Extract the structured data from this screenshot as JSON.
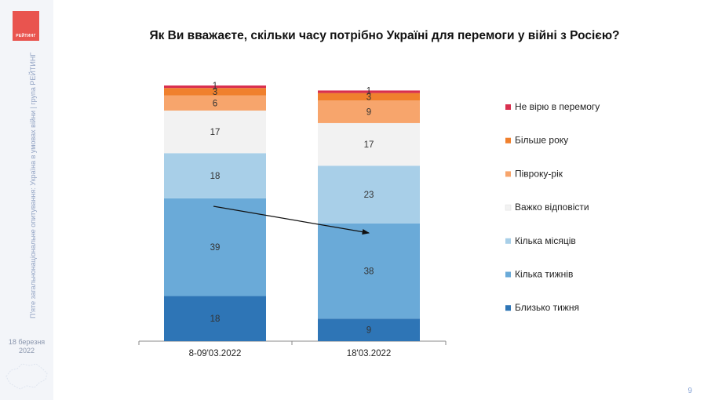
{
  "brand": {
    "logo_text": "РЕЙТИНГ"
  },
  "sidebar": {
    "vertical_text": "П'яте загальнонаціональне опитування: Україна в умовах війни | група РЕЙТИНГ",
    "date_line1": "18 березня",
    "date_line2": "2022"
  },
  "page_number": "9",
  "chart_data": {
    "type": "bar",
    "stacked": true,
    "title": "Як Ви вважаєте, скільки часу потрібно Україні для перемоги у війні з Росією?",
    "categories": [
      "8-09'03.2022",
      "18'03.2022"
    ],
    "series": [
      {
        "name": "Близько тижня",
        "values": [
          18,
          9
        ],
        "color": "#2e75b6"
      },
      {
        "name": "Кілька тижнів",
        "values": [
          39,
          38
        ],
        "color": "#6aaad8"
      },
      {
        "name": "Кілька місяців",
        "values": [
          18,
          23
        ],
        "color": "#a8cfe8"
      },
      {
        "name": "Важко відповісти",
        "values": [
          17,
          17
        ],
        "color": "#f2f2f2"
      },
      {
        "name": "Півроку-рік",
        "values": [
          6,
          9
        ],
        "color": "#f7a56c"
      },
      {
        "name": "Більше року",
        "values": [
          3,
          3
        ],
        "color": "#f0802d"
      },
      {
        "name": "Не вірю в перемогу",
        "values": [
          1,
          1
        ],
        "color": "#d9304f"
      }
    ],
    "ylim": [
      0,
      102
    ],
    "legend_position": "right",
    "annotation": "arrow from Кілька тижнів (first bar) to Кілька тижнів (second bar)"
  }
}
